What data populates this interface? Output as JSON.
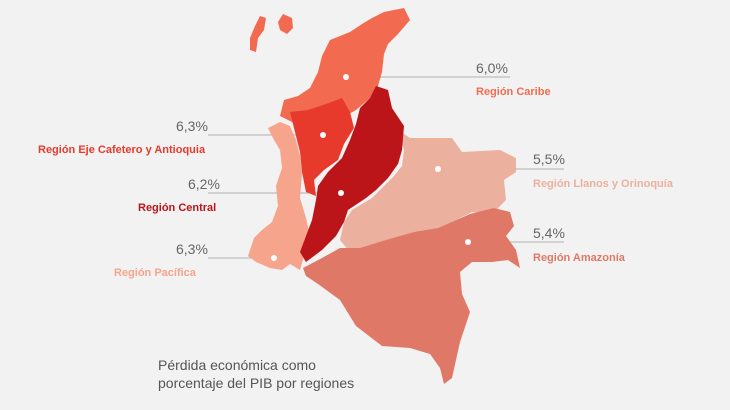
{
  "regions": [
    {
      "id": "caribe",
      "name": "Región Caribe",
      "value": "6,0%",
      "color": "#f26b50"
    },
    {
      "id": "eje",
      "name": "Región Eje Cafetero y Antioquia",
      "value": "6,3%",
      "color": "#e83a2c"
    },
    {
      "id": "central",
      "name": "Región Central",
      "value": "6,2%",
      "color": "#bb1519"
    },
    {
      "id": "pacifica",
      "name": "Región Pacífica",
      "value": "6,3%",
      "color": "#f6a48b"
    },
    {
      "id": "llanos",
      "name": "Región Llanos y Orinoquía",
      "value": "5,5%",
      "color": "#ebb09e"
    },
    {
      "id": "amazonia",
      "name": "Región Amazonía",
      "value": "5,4%",
      "color": "#e07867"
    }
  ],
  "caption": {
    "line1": "Pérdida económica como",
    "line2": "porcentaje del PIB por regiones"
  }
}
